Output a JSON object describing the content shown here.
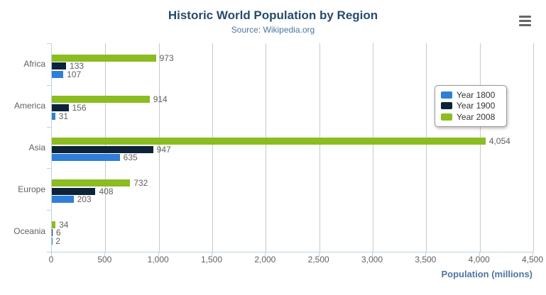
{
  "header": {
    "title": "Historic World Population by Region",
    "subtitle": "Source: Wikipedia.org"
  },
  "menu": {
    "icon": "hamburger-icon"
  },
  "chart_data": {
    "type": "bar",
    "orientation": "horizontal",
    "title": "Historic World Population by Region",
    "subtitle": "Source: Wikipedia.org",
    "categories": [
      "Africa",
      "America",
      "Asia",
      "Europe",
      "Oceania"
    ],
    "series": [
      {
        "name": "Year 1800",
        "color": "#2f7ed8",
        "values": [
          107,
          31,
          635,
          203,
          2
        ]
      },
      {
        "name": "Year 1900",
        "color": "#0d233a",
        "values": [
          133,
          156,
          947,
          408,
          6
        ]
      },
      {
        "name": "Year 2008",
        "color": "#8bbc21",
        "values": [
          973,
          914,
          4054,
          732,
          34
        ]
      }
    ],
    "bar_display_order_top_to_bottom": [
      "Year 2008",
      "Year 1900",
      "Year 1800"
    ],
    "data_labels": {
      "Africa": [
        "973",
        "133",
        "107"
      ],
      "America": [
        "914",
        "156",
        "31"
      ],
      "Asia": [
        "4,054",
        "947",
        "635"
      ],
      "Europe": [
        "732",
        "408",
        "203"
      ],
      "Oceania": [
        "34",
        "6",
        "2"
      ]
    },
    "xlabel": "Population (millions)",
    "xlim": [
      0,
      4500
    ],
    "xticks": [
      "0",
      "500",
      "1,000",
      "1,500",
      "2,000",
      "2,500",
      "3,000",
      "3,500",
      "4,000",
      "4,500"
    ],
    "grid": true,
    "legend_position": "right-overlay",
    "style_colors": {
      "title": "#274b6d",
      "subtitle": "#4d759e",
      "axis_title": "#4d759e",
      "axis_line": "#C0D0E0",
      "gridline": "#C8C8C8",
      "labels": "#606060",
      "legend_text": "#333333",
      "menu_icon": "#666666"
    }
  }
}
